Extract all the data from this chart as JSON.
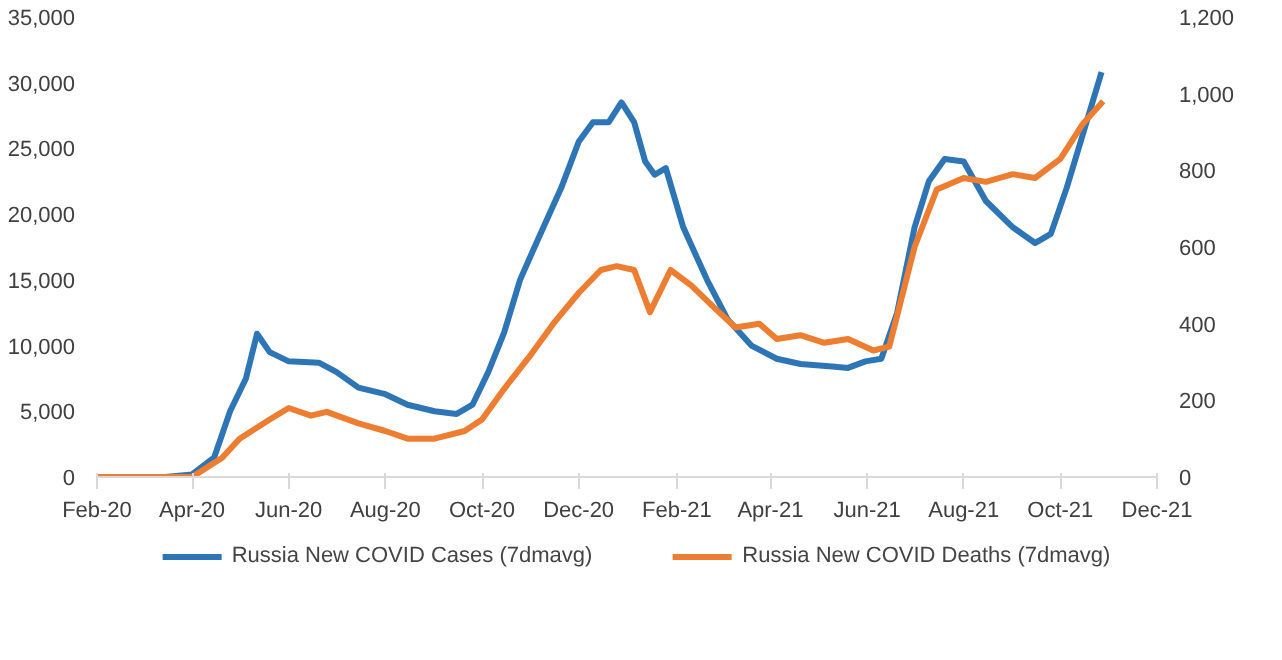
{
  "chart_data": {
    "type": "line",
    "legend": "bottom",
    "grid": false,
    "line_style": "solid",
    "xlim": [
      "2020-02-01",
      "2021-12-01"
    ],
    "xticks": [
      {
        "value": "2020-02-01",
        "label": "Feb-20"
      },
      {
        "value": "2020-04-01",
        "label": "Apr-20"
      },
      {
        "value": "2020-06-01",
        "label": "Jun-20"
      },
      {
        "value": "2020-08-01",
        "label": "Aug-20"
      },
      {
        "value": "2020-10-01",
        "label": "Oct-20"
      },
      {
        "value": "2020-12-01",
        "label": "Dec-20"
      },
      {
        "value": "2021-02-01",
        "label": "Feb-21"
      },
      {
        "value": "2021-04-01",
        "label": "Apr-21"
      },
      {
        "value": "2021-06-01",
        "label": "Jun-21"
      },
      {
        "value": "2021-08-01",
        "label": "Aug-21"
      },
      {
        "value": "2021-10-01",
        "label": "Oct-21"
      },
      {
        "value": "2021-12-01",
        "label": "Dec-21"
      }
    ],
    "ylim": [
      0,
      35000
    ],
    "yticks": [
      0,
      {
        "value": 5000,
        "label": "5,000"
      },
      {
        "value": 10000,
        "label": "10,000"
      },
      {
        "value": 15000,
        "label": "15,000"
      },
      {
        "value": 20000,
        "label": "20,000"
      },
      {
        "value": 25000,
        "label": "25,000"
      },
      {
        "value": 30000,
        "label": "30,000"
      },
      {
        "value": 35000,
        "label": "35,000"
      }
    ],
    "y2lim": [
      0,
      1200
    ],
    "y2ticks": [
      0,
      200,
      400,
      600,
      800,
      {
        "value": 1000,
        "label": "1,000"
      },
      {
        "value": 1200,
        "label": "1,200"
      }
    ],
    "series": [
      {
        "name": "Russia New COVID Cases (7dmavg)",
        "color": "#2e75b6",
        "x": [
          "2020-02-01",
          "2020-03-15",
          "2020-04-01",
          "2020-04-15",
          "2020-04-25",
          "2020-05-05",
          "2020-05-12",
          "2020-05-20",
          "2020-06-01",
          "2020-06-20",
          "2020-07-01",
          "2020-07-15",
          "2020-08-01",
          "2020-08-15",
          "2020-09-01",
          "2020-09-15",
          "2020-09-25",
          "2020-10-05",
          "2020-10-15",
          "2020-10-25",
          "2020-11-05",
          "2020-11-20",
          "2020-12-01",
          "2020-12-10",
          "2020-12-20",
          "2020-12-28",
          "2021-01-05",
          "2021-01-12",
          "2021-01-18",
          "2021-01-25",
          "2021-02-05",
          "2021-02-20",
          "2021-03-05",
          "2021-03-20",
          "2021-04-05",
          "2021-04-20",
          "2021-05-10",
          "2021-05-20",
          "2021-05-31",
          "2021-06-10",
          "2021-06-20",
          "2021-07-01",
          "2021-07-10",
          "2021-07-20",
          "2021-08-01",
          "2021-08-15",
          "2021-09-01",
          "2021-09-15",
          "2021-09-25",
          "2021-10-05",
          "2021-10-15",
          "2021-10-27"
        ],
        "values": [
          0,
          0,
          200,
          1500,
          5000,
          7500,
          10900,
          9500,
          8800,
          8700,
          8000,
          6800,
          6300,
          5500,
          5000,
          4800,
          5500,
          8000,
          11000,
          15000,
          18000,
          22000,
          25500,
          27000,
          27000,
          28500,
          27000,
          24000,
          23000,
          23500,
          19000,
          15000,
          12000,
          10000,
          9000,
          8600,
          8400,
          8300,
          8800,
          9000,
          12500,
          19000,
          22500,
          24200,
          24000,
          21000,
          19000,
          17800,
          18500,
          22000,
          26000,
          30800
        ]
      },
      {
        "name": "Russia New COVID Deaths (7dmavg)",
        "color": "#ed7d31",
        "axis": "y2",
        "x": [
          "2020-02-01",
          "2020-04-01",
          "2020-04-20",
          "2020-05-01",
          "2020-05-20",
          "2020-06-01",
          "2020-06-15",
          "2020-06-25",
          "2020-07-15",
          "2020-08-01",
          "2020-08-15",
          "2020-09-01",
          "2020-09-20",
          "2020-10-01",
          "2020-10-15",
          "2020-11-01",
          "2020-11-15",
          "2020-12-01",
          "2020-12-15",
          "2020-12-25",
          "2021-01-05",
          "2021-01-15",
          "2021-01-28",
          "2021-02-10",
          "2021-02-25",
          "2021-03-10",
          "2021-03-25",
          "2021-04-05",
          "2021-04-20",
          "2021-05-05",
          "2021-05-20",
          "2021-06-05",
          "2021-06-15",
          "2021-07-01",
          "2021-07-15",
          "2021-08-01",
          "2021-08-15",
          "2021-09-01",
          "2021-09-15",
          "2021-10-01",
          "2021-10-15",
          "2021-10-28"
        ],
        "values": [
          0,
          0,
          50,
          100,
          150,
          180,
          160,
          170,
          140,
          120,
          100,
          100,
          120,
          150,
          230,
          320,
          400,
          480,
          540,
          550,
          540,
          430,
          540,
          500,
          440,
          390,
          400,
          360,
          370,
          350,
          360,
          330,
          340,
          600,
          750,
          780,
          770,
          790,
          780,
          830,
          920,
          980
        ]
      }
    ]
  }
}
